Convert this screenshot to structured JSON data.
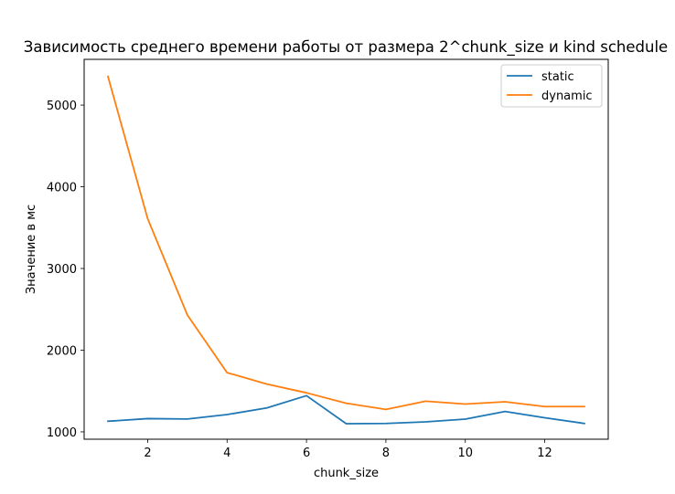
{
  "chart_data": {
    "type": "line",
    "title": "Зависимость среднего времени работы от размера 2^chunk_size и kind schedule",
    "xlabel": "chunk_size",
    "ylabel": "Значение в мс",
    "x": [
      1,
      2,
      3,
      4,
      5,
      6,
      7,
      8,
      9,
      10,
      11,
      12,
      13
    ],
    "xlim": [
      0.4,
      13.6
    ],
    "ylim": [
      910,
      5560
    ],
    "xticks": [
      2,
      4,
      6,
      8,
      10,
      12
    ],
    "yticks": [
      1000,
      2000,
      3000,
      4000,
      5000
    ],
    "grid": false,
    "legend_position": "top-right",
    "series": [
      {
        "name": "static",
        "color": "#1f77b4",
        "values": [
          1130,
          1162,
          1157,
          1212,
          1293,
          1443,
          1100,
          1103,
          1122,
          1156,
          1250,
          1173,
          1103
        ]
      },
      {
        "name": "dynamic",
        "color": "#ff7f0e",
        "values": [
          5350,
          3610,
          2430,
          1725,
          1585,
          1478,
          1350,
          1275,
          1375,
          1340,
          1368,
          1310,
          1310
        ]
      }
    ]
  }
}
